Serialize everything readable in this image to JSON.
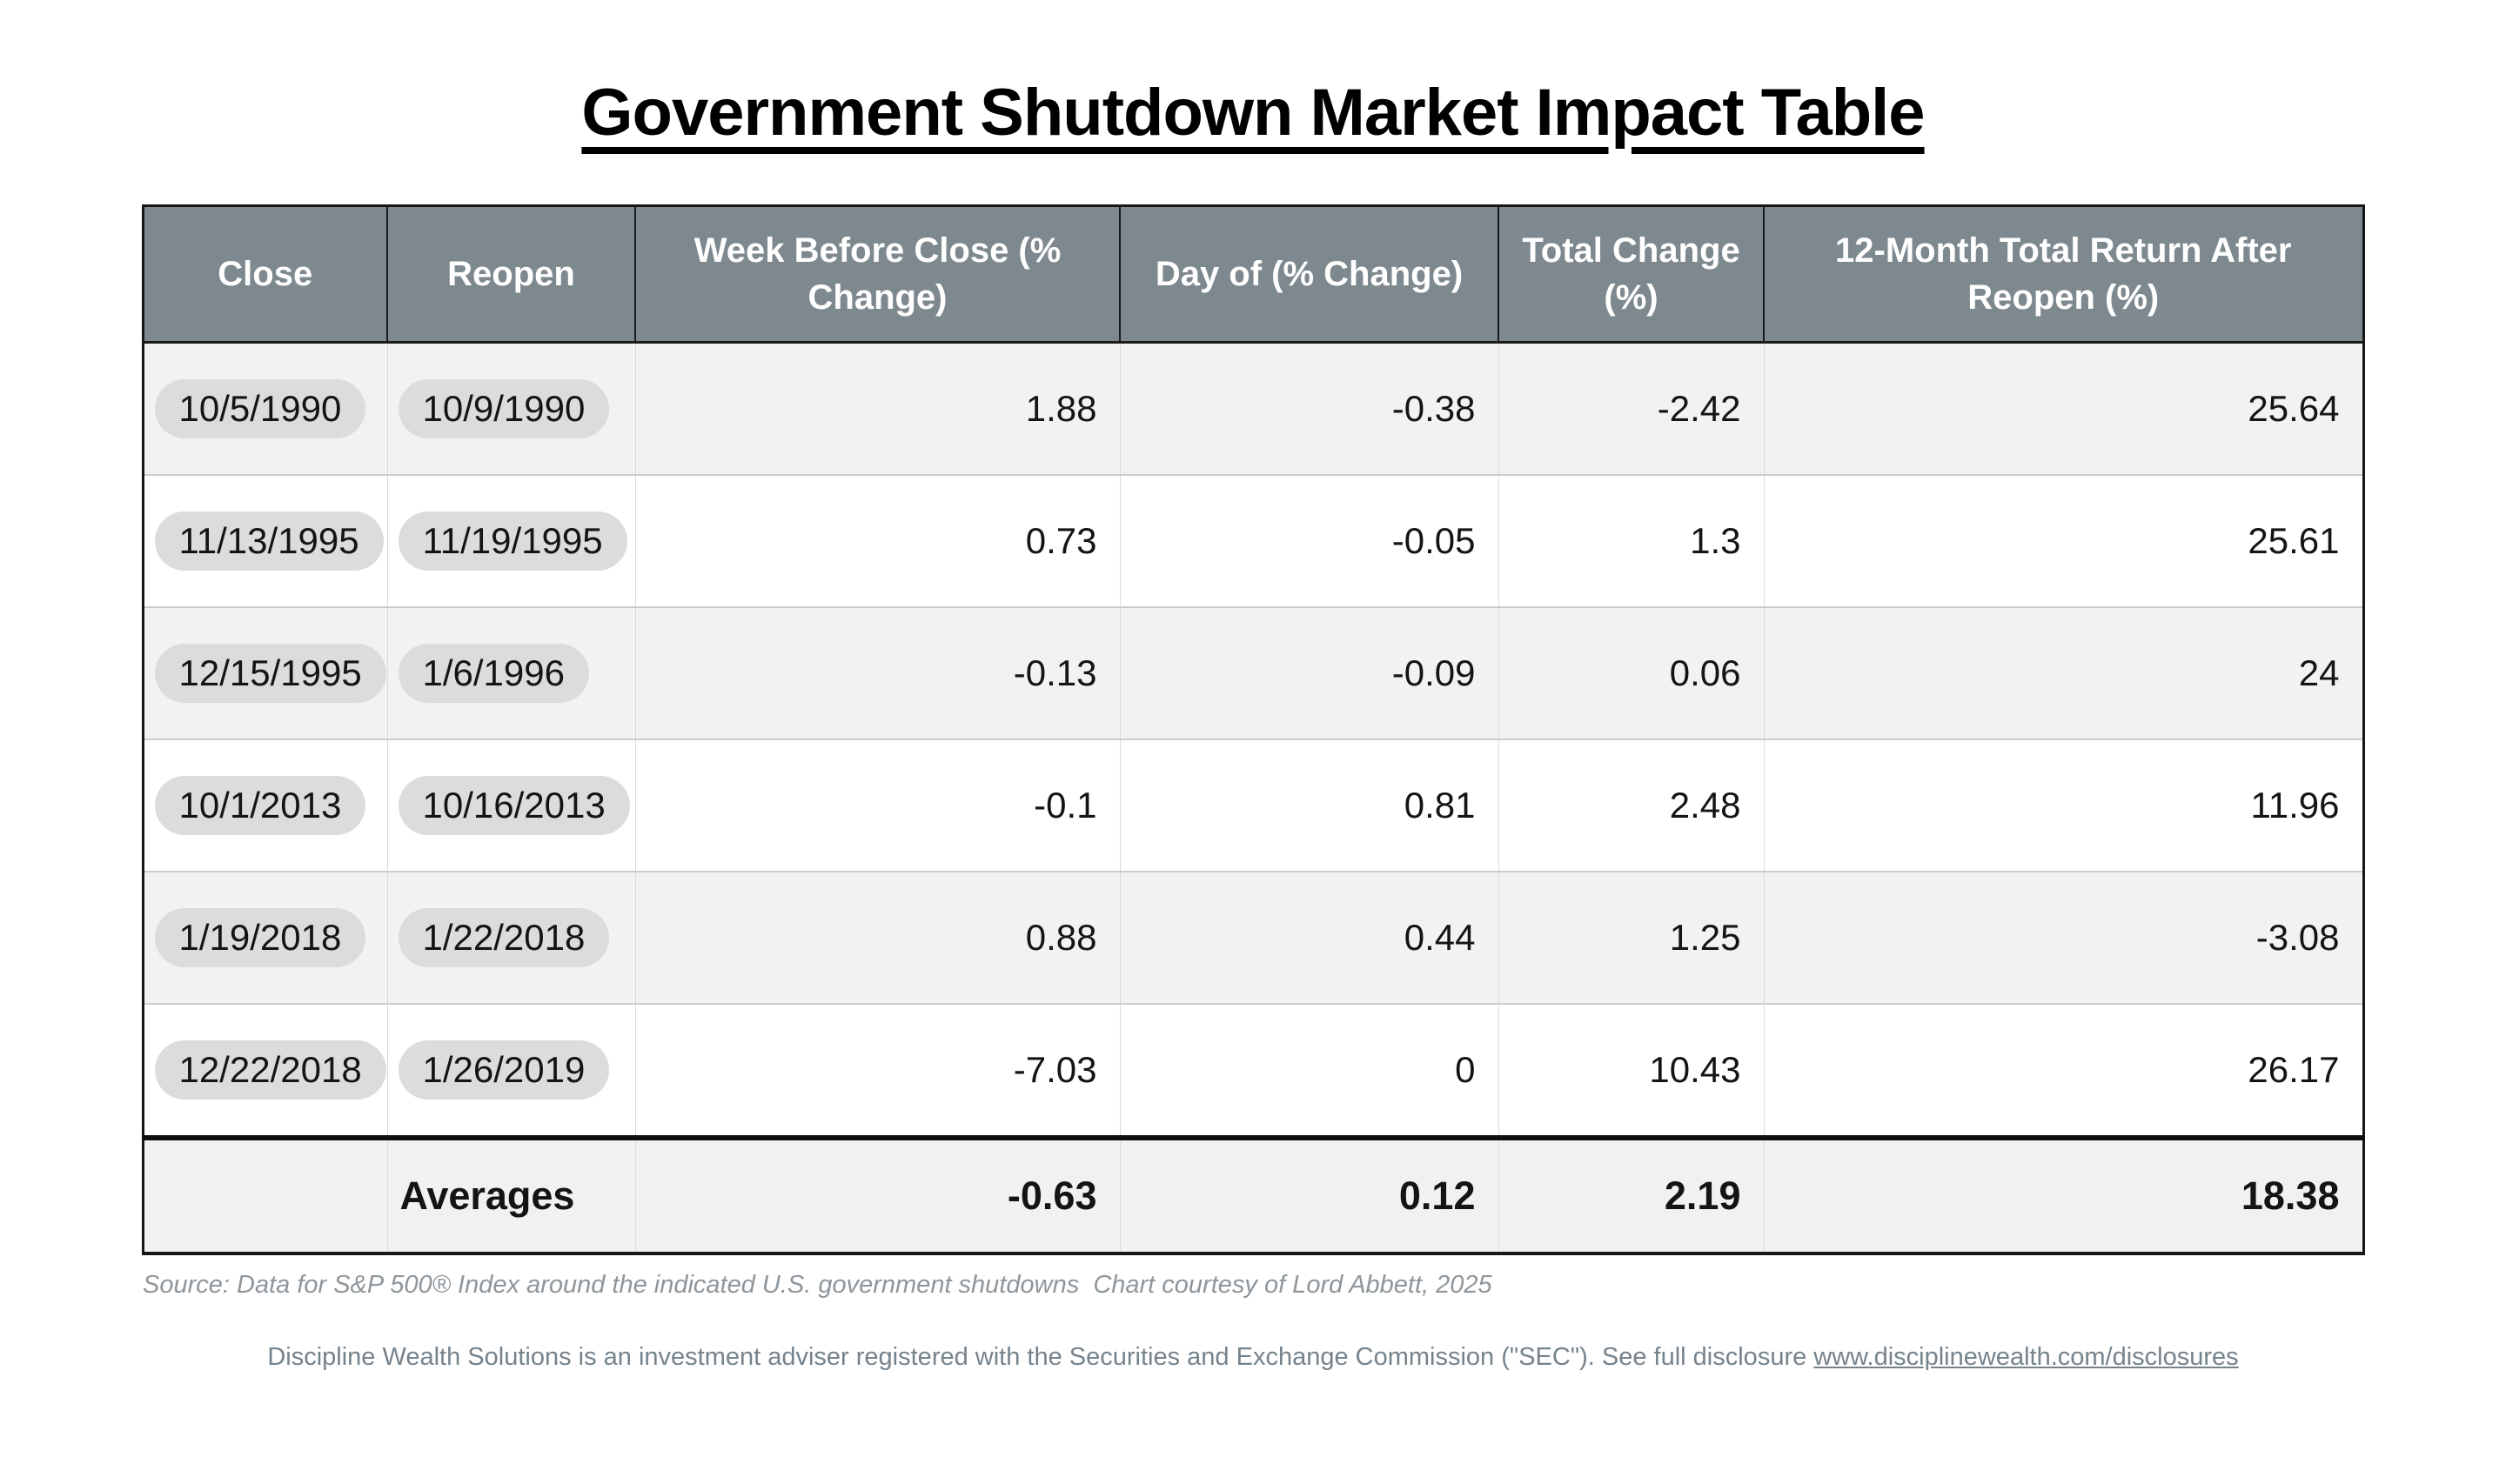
{
  "page": {
    "title": "Government Shutdown Market Impact Table",
    "source_note": "Source: Data for S&P 500® Index around the indicated U.S. government shutdowns  Chart courtesy of Lord Abbett, 2025",
    "disclaimer_prefix": "Discipline Wealth Solutions is an investment adviser registered with the Securities and Exchange Commission (\"SEC\"). See full disclosure ",
    "disclaimer_link": "www.disciplinewealth.com/disclosures"
  },
  "colors": {
    "header_bg": "#7d898e",
    "header_text": "#ffffff",
    "stripe_row_bg": "#f2f2f2",
    "date_chip_bg": "#dcdcdc",
    "border_dark": "#161616",
    "source_text": "#8e969c",
    "disclaimer_text": "#75838d"
  },
  "table": {
    "columns": [
      "Close",
      "Reopen",
      "Week Before Close (% Change)",
      "Day of (% Change)",
      "Total Change (%)",
      "12-Month Total Return After Reopen (%)"
    ],
    "rows": [
      {
        "close": "10/5/1990",
        "reopen": "10/9/1990",
        "week_before": "1.88",
        "day_of": "-0.38",
        "total_change": "-2.42",
        "twelve_month": "25.64"
      },
      {
        "close": "11/13/1995",
        "reopen": "11/19/1995",
        "week_before": "0.73",
        "day_of": "-0.05",
        "total_change": "1.3",
        "twelve_month": "25.61"
      },
      {
        "close": "12/15/1995",
        "reopen": "1/6/1996",
        "week_before": "-0.13",
        "day_of": "-0.09",
        "total_change": "0.06",
        "twelve_month": "24"
      },
      {
        "close": "10/1/2013",
        "reopen": "10/16/2013",
        "week_before": "-0.1",
        "day_of": "0.81",
        "total_change": "2.48",
        "twelve_month": "11.96"
      },
      {
        "close": "1/19/2018",
        "reopen": "1/22/2018",
        "week_before": "0.88",
        "day_of": "0.44",
        "total_change": "1.25",
        "twelve_month": "-3.08"
      },
      {
        "close": "12/22/2018",
        "reopen": "1/26/2019",
        "week_before": "-7.03",
        "day_of": "0",
        "total_change": "10.43",
        "twelve_month": "26.17"
      }
    ],
    "averages": {
      "label": "Averages",
      "week_before": "-0.63",
      "day_of": "0.12",
      "total_change": "2.19",
      "twelve_month": "18.38"
    }
  },
  "chart_data": {
    "type": "table",
    "title": "Government Shutdown Market Impact Table",
    "columns": [
      "Close",
      "Reopen",
      "Week Before Close (% Change)",
      "Day of (% Change)",
      "Total Change (%)",
      "12-Month Total Return After Reopen (%)"
    ],
    "rows": [
      [
        "10/5/1990",
        "10/9/1990",
        1.88,
        -0.38,
        -2.42,
        25.64
      ],
      [
        "11/13/1995",
        "11/19/1995",
        0.73,
        -0.05,
        1.3,
        25.61
      ],
      [
        "12/15/1995",
        "1/6/1996",
        -0.13,
        -0.09,
        0.06,
        24
      ],
      [
        "10/1/2013",
        "10/16/2013",
        -0.1,
        0.81,
        2.48,
        11.96
      ],
      [
        "1/19/2018",
        "1/22/2018",
        0.88,
        0.44,
        1.25,
        -3.08
      ],
      [
        "12/22/2018",
        "1/26/2019",
        -7.03,
        0,
        10.43,
        26.17
      ]
    ],
    "averages_row": [
      "",
      "Averages",
      -0.63,
      0.12,
      2.19,
      18.38
    ],
    "source": "Source: Data for S&P 500® Index around the indicated U.S. government shutdowns  Chart courtesy of Lord Abbett, 2025"
  }
}
